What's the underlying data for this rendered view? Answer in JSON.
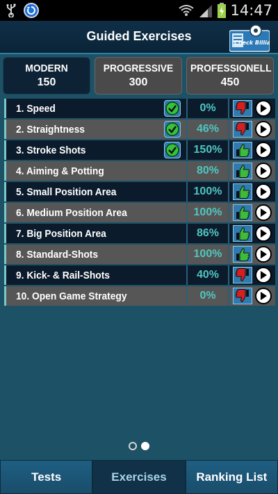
{
  "status_bar": {
    "time": "14:47"
  },
  "header": {
    "title": "Guided Exercises",
    "logo_text": "Check Billiard"
  },
  "tabs": [
    {
      "name": "MODERN",
      "value": "150",
      "active": true
    },
    {
      "name": "PROGRESSIVE",
      "value": "300",
      "active": false
    },
    {
      "name": "PROFESSIONELL",
      "value": "450",
      "active": false
    }
  ],
  "exercises": [
    {
      "label": "1. Speed",
      "percent": "0%",
      "checked": true,
      "thumb": "down"
    },
    {
      "label": "2. Straightness",
      "percent": "46%",
      "checked": true,
      "thumb": "down"
    },
    {
      "label": "3. Stroke Shots",
      "percent": "150%",
      "checked": true,
      "thumb": "up"
    },
    {
      "label": "4. Aiming & Potting",
      "percent": "80%",
      "checked": false,
      "thumb": "up"
    },
    {
      "label": "5. Small Position Area",
      "percent": "100%",
      "checked": false,
      "thumb": "up"
    },
    {
      "label": "6. Medium Position Area",
      "percent": "100%",
      "checked": false,
      "thumb": "up"
    },
    {
      "label": "7. Big Position Area",
      "percent": "86%",
      "checked": false,
      "thumb": "up"
    },
    {
      "label": "8. Standard-Shots",
      "percent": "100%",
      "checked": false,
      "thumb": "up"
    },
    {
      "label": "9. Kick- & Rail-Shots",
      "percent": "40%",
      "checked": false,
      "thumb": "down"
    },
    {
      "label": "10. Open Game Strategy",
      "percent": "0%",
      "checked": false,
      "thumb": "down"
    }
  ],
  "pager": {
    "pages": 2,
    "current": 2
  },
  "bottom_nav": [
    {
      "label": "Tests",
      "active": false
    },
    {
      "label": "Exercises",
      "active": true
    },
    {
      "label": "Ranking List",
      "active": false
    }
  ],
  "colors": {
    "background": "#1d5266",
    "percent_text": "#4fc6c0",
    "thumb_up": "#3dbb3d",
    "thumb_down": "#d42020",
    "check_green": "#36c23a"
  }
}
